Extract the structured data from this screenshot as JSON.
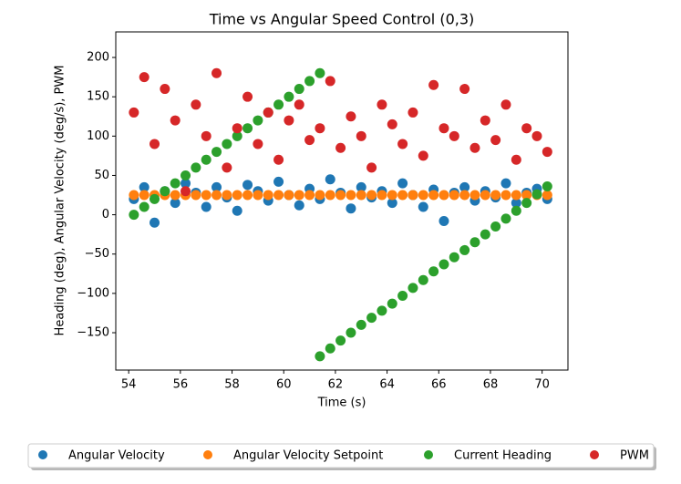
{
  "chart_data": {
    "type": "scatter",
    "title": "Time vs Angular Speed Control (0,3)",
    "xlabel": "Time (s)",
    "ylabel": "Heading (deg), Angular Velocity (deg/s), PWM",
    "xlim": [
      53.5,
      71.0
    ],
    "ylim": [
      -197.5,
      232.5
    ],
    "xticks": [
      54,
      56,
      58,
      60,
      62,
      64,
      66,
      68,
      70
    ],
    "yticks": [
      {
        "value": -150,
        "label": "−150"
      },
      {
        "value": -100,
        "label": "−100"
      },
      {
        "value": -50,
        "label": "−50"
      },
      0,
      50,
      100,
      150,
      200
    ],
    "legend": "lower center",
    "series": [
      {
        "name": "Angular Velocity",
        "color": "#1f77b4",
        "x": [
          54.2,
          54.6,
          55.0,
          55.4,
          55.8,
          56.2,
          56.6,
          57.0,
          57.4,
          57.8,
          58.2,
          58.6,
          59.0,
          59.4,
          59.8,
          60.2,
          60.6,
          61.0,
          61.4,
          61.8,
          62.2,
          62.6,
          63.0,
          63.4,
          63.8,
          64.2,
          64.6,
          65.0,
          65.4,
          65.8,
          66.2,
          66.6,
          67.0,
          67.4,
          67.8,
          68.2,
          68.6,
          69.0,
          69.4,
          69.8,
          70.2
        ],
        "values": [
          20,
          35,
          -10,
          30,
          15,
          40,
          28,
          10,
          35,
          22,
          5,
          38,
          30,
          18,
          42,
          25,
          12,
          33,
          20,
          45,
          28,
          8,
          35,
          22,
          30,
          15,
          40,
          25,
          10,
          32,
          -8,
          28,
          35,
          18,
          30,
          22,
          40,
          15,
          28,
          33,
          20
        ]
      },
      {
        "name": "Angular Velocity Setpoint",
        "color": "#ff7f0e",
        "x": [
          54.2,
          54.6,
          55.0,
          55.4,
          55.8,
          56.2,
          56.6,
          57.0,
          57.4,
          57.8,
          58.2,
          58.6,
          59.0,
          59.4,
          59.8,
          60.2,
          60.6,
          61.0,
          61.4,
          61.8,
          62.2,
          62.6,
          63.0,
          63.4,
          63.8,
          64.2,
          64.6,
          65.0,
          65.4,
          65.8,
          66.2,
          66.6,
          67.0,
          67.4,
          67.8,
          68.2,
          68.6,
          69.0,
          69.4,
          69.8,
          70.2
        ],
        "values": [
          25,
          25,
          25,
          25,
          25,
          25,
          25,
          25,
          25,
          25,
          25,
          25,
          25,
          25,
          25,
          25,
          25,
          25,
          25,
          25,
          25,
          25,
          25,
          25,
          25,
          25,
          25,
          25,
          25,
          25,
          25,
          25,
          25,
          25,
          25,
          25,
          25,
          25,
          25,
          25,
          25
        ]
      },
      {
        "name": "Current Heading",
        "color": "#2ca02c",
        "x": [
          54.2,
          54.6,
          55.0,
          55.4,
          55.8,
          56.2,
          56.6,
          57.0,
          57.4,
          57.8,
          58.2,
          58.6,
          59.0,
          59.4,
          59.8,
          60.2,
          60.6,
          61.0,
          61.4,
          61.4,
          61.8,
          62.2,
          62.6,
          63.0,
          63.4,
          63.8,
          64.2,
          64.6,
          65.0,
          65.4,
          65.8,
          66.2,
          66.6,
          67.0,
          67.4,
          67.8,
          68.2,
          68.6,
          69.0,
          69.4,
          69.8,
          70.2
        ],
        "values": [
          0,
          10,
          20,
          30,
          40,
          50,
          60,
          70,
          80,
          90,
          100,
          110,
          120,
          130,
          140,
          150,
          160,
          170,
          180,
          -180,
          -170,
          -160,
          -150,
          -140,
          -131,
          -122,
          -113,
          -103,
          -93,
          -83,
          -72,
          -63,
          -54,
          -45,
          -35,
          -25,
          -15,
          -5,
          5,
          15,
          26,
          36
        ]
      },
      {
        "name": "PWM",
        "color": "#d62728",
        "x": [
          54.2,
          54.6,
          55.0,
          55.4,
          55.8,
          56.2,
          56.6,
          57.0,
          57.4,
          57.8,
          58.2,
          58.6,
          59.0,
          59.4,
          59.8,
          60.2,
          60.6,
          61.0,
          61.4,
          61.8,
          62.2,
          62.6,
          63.0,
          63.4,
          63.8,
          64.2,
          64.6,
          65.0,
          65.4,
          65.8,
          66.2,
          66.6,
          67.0,
          67.4,
          67.8,
          68.2,
          68.6,
          69.0,
          69.4,
          69.8,
          70.2
        ],
        "values": [
          130,
          175,
          90,
          160,
          120,
          30,
          140,
          100,
          180,
          60,
          110,
          150,
          90,
          130,
          70,
          120,
          140,
          95,
          110,
          170,
          85,
          125,
          100,
          60,
          140,
          115,
          90,
          130,
          75,
          165,
          110,
          100,
          160,
          85,
          120,
          95,
          140,
          70,
          110,
          100,
          80
        ]
      }
    ]
  }
}
